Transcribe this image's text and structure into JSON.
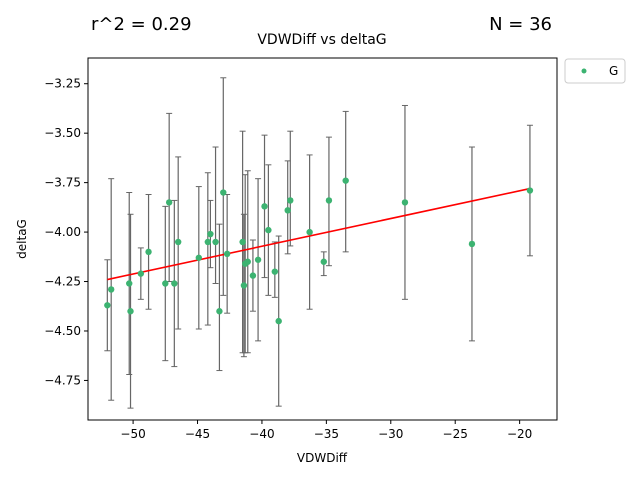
{
  "header": {
    "r2_text": "r^2 = 0.29",
    "n_text": "N = 36"
  },
  "chart_data": {
    "type": "scatter",
    "title": "VDWDiff vs deltaG",
    "xlabel": "VDWDiff",
    "ylabel": "deltaG",
    "xlim": [
      -53.5,
      -17.1
    ],
    "ylim": [
      -4.95,
      -3.12
    ],
    "xticks": [
      -50,
      -45,
      -40,
      -35,
      -30,
      -25,
      -20
    ],
    "xtick_labels": [
      "−50",
      "−45",
      "−40",
      "−35",
      "−30",
      "−25",
      "−20"
    ],
    "yticks": [
      -4.75,
      -4.5,
      -4.25,
      -4.0,
      -3.75,
      -3.5,
      -3.25
    ],
    "ytick_labels": [
      "−4.75",
      "−4.50",
      "−4.25",
      "−4.00",
      "−3.75",
      "−3.50",
      "−3.25"
    ],
    "grid": false,
    "legend_position": "outside-top-right",
    "series": [
      {
        "name": "G",
        "color": "#3cb371",
        "errorbar_color": "#666666",
        "x": [
          -52.0,
          -51.7,
          -50.3,
          -50.2,
          -49.4,
          -48.8,
          -47.5,
          -47.2,
          -46.8,
          -46.5,
          -44.9,
          -44.2,
          -44.0,
          -43.6,
          -43.3,
          -43.0,
          -42.7,
          -41.5,
          -41.4,
          -41.3,
          -41.1,
          -40.7,
          -40.3,
          -39.8,
          -39.5,
          -39.0,
          -38.7,
          -38.0,
          -37.8,
          -36.3,
          -35.2,
          -34.8,
          -33.5,
          -28.9,
          -23.7,
          -19.2
        ],
        "y": [
          -4.37,
          -4.29,
          -4.26,
          -4.4,
          -4.21,
          -4.1,
          -4.26,
          -3.85,
          -4.26,
          -4.05,
          -4.13,
          -4.05,
          -4.01,
          -4.05,
          -4.4,
          -3.8,
          -4.11,
          -4.05,
          -4.27,
          -4.16,
          -4.15,
          -4.22,
          -4.14,
          -3.87,
          -3.99,
          -4.2,
          -4.45,
          -3.89,
          -3.84,
          -4.0,
          -4.15,
          -3.84,
          -3.74,
          -3.85,
          -4.06,
          -3.79
        ],
        "yerr_low": [
          0.23,
          0.56,
          0.46,
          0.49,
          0.13,
          0.29,
          0.39,
          0.4,
          0.42,
          0.44,
          0.36,
          0.42,
          0.17,
          0.21,
          0.3,
          0.52,
          0.3,
          0.56,
          0.36,
          0.45,
          0.46,
          0.18,
          0.41,
          0.36,
          0.33,
          0.13,
          0.43,
          0.22,
          0.23,
          0.39,
          0.07,
          0.33,
          0.36,
          0.49,
          0.49,
          0.33
        ],
        "yerr_high": [
          0.23,
          0.56,
          0.46,
          0.49,
          0.13,
          0.29,
          0.39,
          0.45,
          0.42,
          0.43,
          0.36,
          0.35,
          0.17,
          0.48,
          0.44,
          0.58,
          0.3,
          0.56,
          0.36,
          0.45,
          0.46,
          0.18,
          0.41,
          0.36,
          0.33,
          0.15,
          0.43,
          0.25,
          0.35,
          0.39,
          0.05,
          0.32,
          0.35,
          0.49,
          0.49,
          0.33
        ]
      }
    ],
    "fit_line": {
      "color": "#ff0000",
      "x": [
        -52.0,
        -19.2
      ],
      "y": [
        -4.24,
        -3.78
      ]
    }
  }
}
